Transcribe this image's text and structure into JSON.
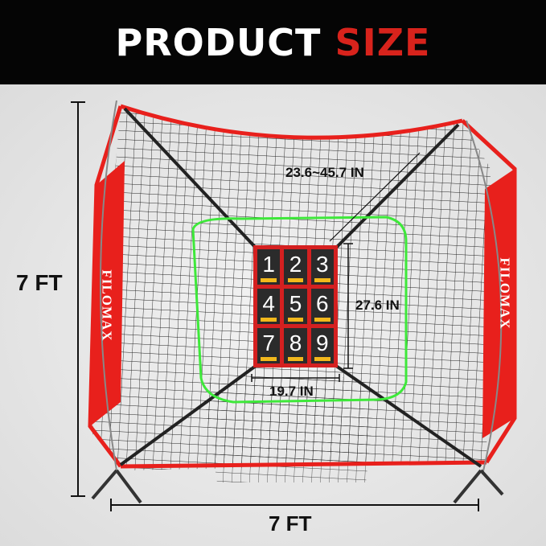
{
  "header": {
    "title_part1": "PRODUCT",
    "title_part2": "SIZE"
  },
  "dimensions": {
    "height": "7 FT",
    "width": "7 FT",
    "target_adjust": "23.6~45.7 IN",
    "target_height": "27.6 IN",
    "target_width": "19.7 IN"
  },
  "brand": "FILOMAX",
  "zones": [
    "1",
    "2",
    "3",
    "4",
    "5",
    "6",
    "7",
    "8",
    "9"
  ],
  "colors": {
    "accent_red": "#d8231c",
    "frame_red": "#e8201c",
    "strike_zone_green": "#3ee83a",
    "zone_bar_yellow": "#f2b81c"
  }
}
